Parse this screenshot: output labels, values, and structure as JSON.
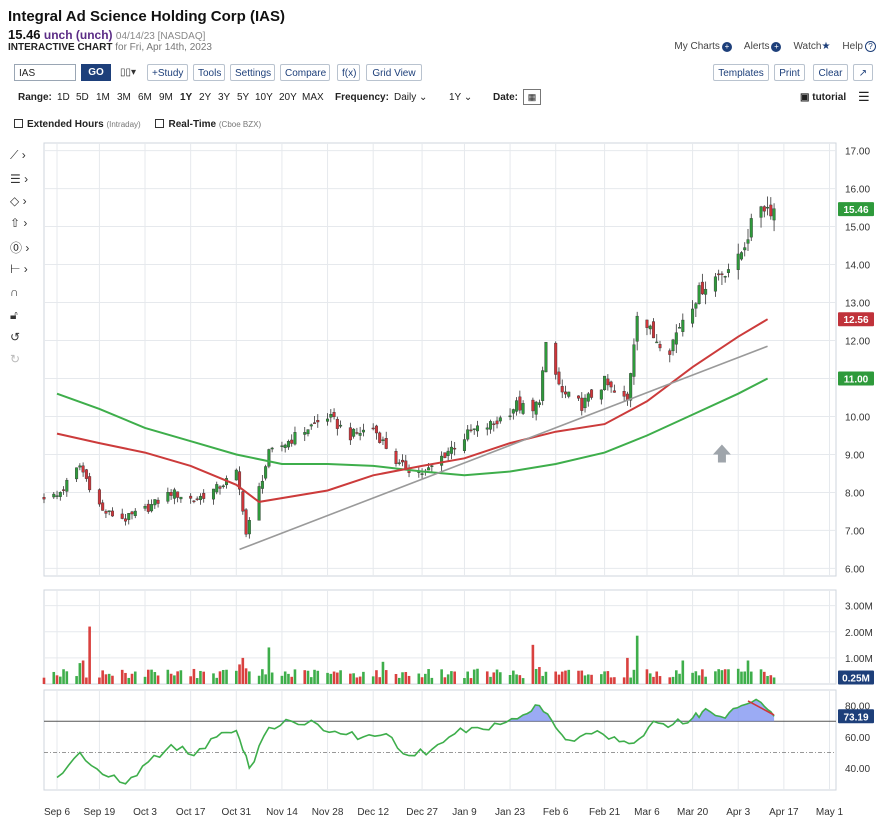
{
  "header": {
    "title": "Integral Ad Science Holding Corp (IAS)",
    "price": "15.46",
    "change": "unch (unch)",
    "quote_time": "04/14/23 [NASDAQ]",
    "chart_label": "INTERACTIVE CHART",
    "chart_date": "for Fri, Apr 14th, 2023"
  },
  "top_links": {
    "my_charts": "My Charts",
    "alerts": "Alerts",
    "watch": "Watch",
    "help": "Help"
  },
  "toolbar": {
    "symbol": "IAS",
    "go": "GO",
    "study": "+Study",
    "tools": "Tools",
    "settings": "Settings",
    "compare": "Compare",
    "fx": "f(x)",
    "grid_view": "Grid View",
    "templates": "Templates",
    "print": "Print",
    "clear": "Clear"
  },
  "range_bar": {
    "range_label": "Range:",
    "ranges": [
      "1D",
      "5D",
      "1M",
      "3M",
      "6M",
      "9M",
      "1Y",
      "2Y",
      "3Y",
      "5Y",
      "10Y",
      "20Y",
      "MAX"
    ],
    "selected_range": "1Y",
    "frequency_label": "Frequency:",
    "frequency": "Daily",
    "period": "1Y",
    "date_label": "Date:",
    "tutorial": "tutorial"
  },
  "options": {
    "extended_hours": "Extended Hours",
    "extended_hours_note": "(Intraday)",
    "real_time": "Real-Time",
    "real_time_note": "(Cboe BZX)"
  },
  "chart_data": [
    {
      "type": "candlestick",
      "name": "price",
      "ylim": [
        5.8,
        17.2
      ],
      "y_ticks": [
        "17.00",
        "16.00",
        "15.00",
        "14.00",
        "13.00",
        "12.00",
        "11.00",
        "10.00",
        "9.00",
        "8.00",
        "7.00",
        "6.00"
      ],
      "x_ticks": [
        "Sep 6",
        "Sep 19",
        "Oct 3",
        "Oct 17",
        "Oct 31",
        "Nov 14",
        "Nov 28",
        "Dec 12",
        "Dec 27",
        "Jan 9",
        "Jan 23",
        "Feb 6",
        "Feb 21",
        "Mar 6",
        "Mar 20",
        "Apr 3",
        "Apr 17",
        "May 1"
      ],
      "close_anchor_dates": [
        "2022-09-06",
        "2022-09-13",
        "2022-09-20",
        "2022-09-27",
        "2022-10-04",
        "2022-10-11",
        "2022-10-18",
        "2022-10-25",
        "2022-10-31",
        "2022-11-02",
        "2022-11-03",
        "2022-11-10",
        "2022-11-22",
        "2022-11-28",
        "2022-12-05",
        "2022-12-12",
        "2022-12-20",
        "2022-12-28",
        "2023-01-04",
        "2023-01-11",
        "2023-01-18",
        "2023-01-25",
        "2023-01-30",
        "2023-02-01",
        "2023-02-03",
        "2023-02-08",
        "2023-02-14",
        "2023-02-21",
        "2023-02-24",
        "2023-02-28",
        "2023-03-03",
        "2023-03-08",
        "2023-03-13",
        "2023-03-17",
        "2023-03-23",
        "2023-03-29",
        "2023-04-03",
        "2023-04-06",
        "2023-04-10",
        "2023-04-12",
        "2023-04-14"
      ],
      "close_anchor_values": [
        7.9,
        8.7,
        7.5,
        7.3,
        7.6,
        8.0,
        7.8,
        8.1,
        8.5,
        7.6,
        6.9,
        9.0,
        9.7,
        10.0,
        9.5,
        9.7,
        8.7,
        8.5,
        9.1,
        9.6,
        9.8,
        10.3,
        10.1,
        10.5,
        11.8,
        10.6,
        10.3,
        10.9,
        10.6,
        10.4,
        12.8,
        12.1,
        11.8,
        12.6,
        13.4,
        13.8,
        14.1,
        14.8,
        15.6,
        15.5,
        15.46
      ],
      "last_price": "15.46",
      "ma_labels": [
        "12.56",
        "11.00"
      ],
      "ma_red": {
        "dates": [
          "2022-09-06",
          "2022-09-19",
          "2022-10-03",
          "2022-10-17",
          "2022-10-31",
          "2022-11-07",
          "2022-11-28",
          "2022-12-12",
          "2022-12-27",
          "2023-01-09",
          "2023-01-23",
          "2023-02-06",
          "2023-02-21",
          "2023-03-06",
          "2023-03-20",
          "2023-04-03",
          "2023-04-12"
        ],
        "values": [
          9.55,
          9.3,
          9.05,
          8.7,
          8.2,
          7.75,
          8.05,
          8.45,
          8.7,
          8.9,
          9.3,
          9.6,
          9.8,
          10.4,
          11.3,
          12.1,
          12.56
        ]
      },
      "ma_green": {
        "dates": [
          "2022-09-06",
          "2022-09-19",
          "2022-10-03",
          "2022-10-17",
          "2022-10-31",
          "2022-11-14",
          "2022-11-28",
          "2022-12-12",
          "2022-12-27",
          "2023-01-09",
          "2023-01-23",
          "2023-02-06",
          "2023-02-21",
          "2023-03-06",
          "2023-03-20",
          "2023-04-03",
          "2023-04-12"
        ],
        "values": [
          10.6,
          10.2,
          9.7,
          9.35,
          9.0,
          8.75,
          8.75,
          8.7,
          8.55,
          8.45,
          8.55,
          8.75,
          9.05,
          9.5,
          10.05,
          10.6,
          11.0
        ]
      },
      "trendline": {
        "from": [
          "2022-11-01",
          6.5
        ],
        "to": [
          "2023-04-12",
          11.85
        ]
      }
    },
    {
      "type": "bar",
      "name": "volume",
      "ylim": [
        0,
        3.6
      ],
      "y_ticks": [
        "3.00M",
        "2.00M",
        "1.00M"
      ],
      "last_volume": "0.25M",
      "spike_dates": [
        "2022-09-13",
        "2022-09-14",
        "2022-09-16",
        "2022-10-05",
        "2022-10-20",
        "2022-11-01",
        "2022-11-02",
        "2022-11-03",
        "2022-11-10",
        "2022-12-15",
        "2023-01-30",
        "2023-02-01",
        "2023-02-28",
        "2023-03-03",
        "2023-03-17",
        "2023-04-06"
      ],
      "spike_values": [
        0.8,
        0.9,
        2.2,
        0.55,
        0.5,
        0.75,
        1.0,
        0.6,
        1.4,
        0.85,
        1.5,
        0.65,
        1.0,
        1.85,
        0.9,
        0.9
      ],
      "base_volume": 0.45
    },
    {
      "type": "line",
      "name": "stochastic",
      "ylim": [
        26,
        90
      ],
      "y_ticks": [
        "80.00",
        "60.00",
        "40.00"
      ],
      "last_value": "73.19",
      "overbought": 70,
      "midline": 50,
      "dates": [
        "2022-09-06",
        "2022-09-13",
        "2022-09-20",
        "2022-09-27",
        "2022-10-04",
        "2022-10-11",
        "2022-10-18",
        "2022-10-25",
        "2022-10-31",
        "2022-11-04",
        "2022-11-10",
        "2022-11-17",
        "2022-11-25",
        "2022-12-02",
        "2022-12-09",
        "2022-12-16",
        "2022-12-23",
        "2022-12-30",
        "2023-01-06",
        "2023-01-13",
        "2023-01-20",
        "2023-01-27",
        "2023-02-01",
        "2023-02-06",
        "2023-02-10",
        "2023-02-17",
        "2023-02-24",
        "2023-03-02",
        "2023-03-08",
        "2023-03-14",
        "2023-03-20",
        "2023-03-24",
        "2023-03-30",
        "2023-04-04",
        "2023-04-10",
        "2023-04-14"
      ],
      "values": [
        34,
        50,
        36,
        30,
        44,
        55,
        48,
        60,
        64,
        40,
        66,
        70,
        68,
        62,
        60,
        62,
        48,
        52,
        62,
        66,
        68,
        74,
        80,
        66,
        58,
        62,
        60,
        56,
        70,
        68,
        72,
        78,
        72,
        80,
        82,
        73.19
      ]
    }
  ]
}
